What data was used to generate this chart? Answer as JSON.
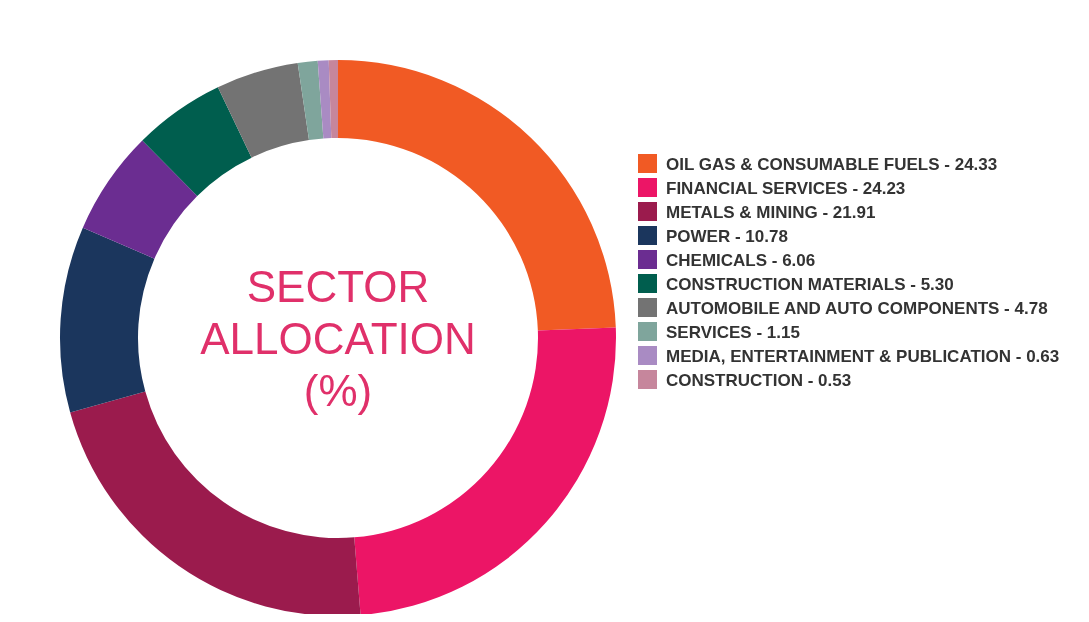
{
  "chart_data": {
    "type": "donut",
    "title": "SECTOR ALLOCATION (%)",
    "categories": [
      "OIL GAS & CONSUMABLE FUELS",
      "FINANCIAL SERVICES",
      "METALS & MINING",
      "POWER",
      "CHEMICALS",
      "CONSTRUCTION MATERIALS",
      "AUTOMOBILE AND AUTO COMPONENTS",
      "SERVICES",
      "MEDIA, ENTERTAINMENT & PUBLICATION",
      "CONSTRUCTION"
    ],
    "values": [
      24.33,
      24.23,
      21.91,
      10.78,
      6.06,
      5.3,
      4.78,
      1.15,
      0.63,
      0.53
    ],
    "value_labels": [
      "24.33",
      "24.23",
      "21.91",
      "10.78",
      "6.06",
      "5.30",
      "4.78",
      "1.15",
      "0.63",
      "0.53"
    ],
    "colors": [
      "#f15a24",
      "#ec1566",
      "#9b1b4d",
      "#1b365d",
      "#6b2d91",
      "#005e4e",
      "#737373",
      "#7fa59c",
      "#a98bc3",
      "#c6869c"
    ],
    "legend": "right"
  }
}
